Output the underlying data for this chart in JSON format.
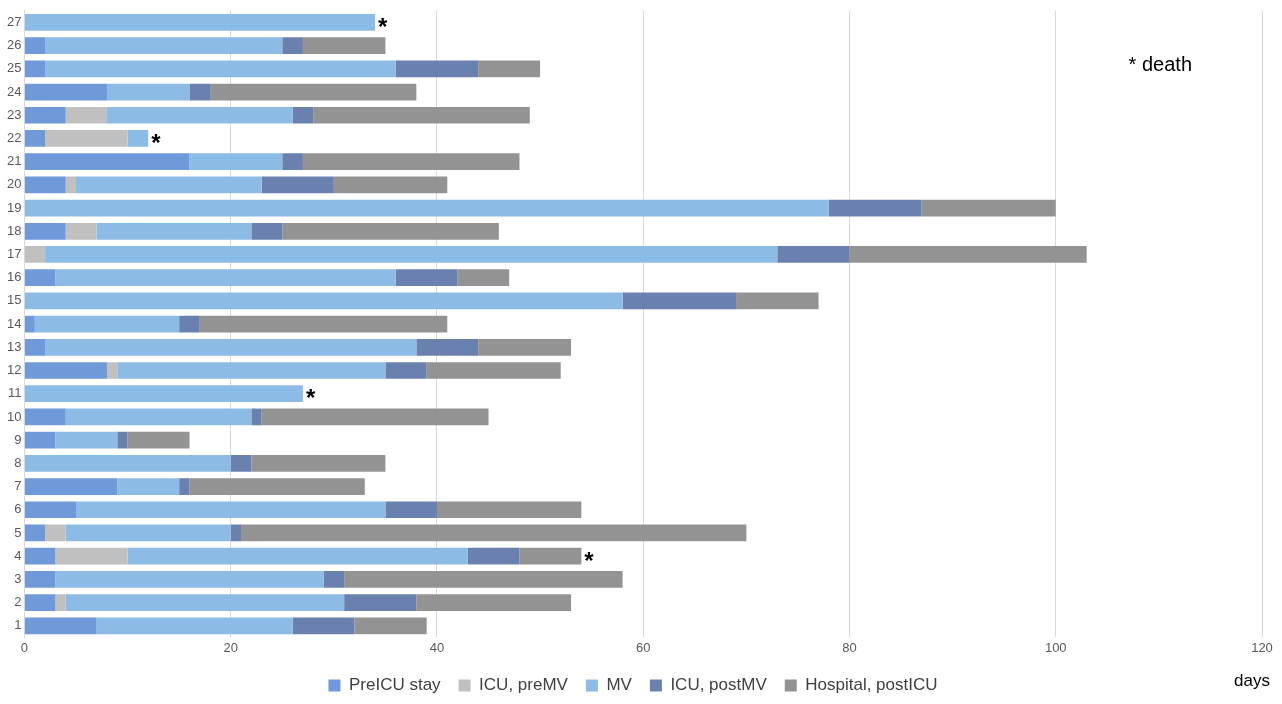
{
  "chart_data": {
    "type": "bar",
    "orientation": "horizontal",
    "stacked": true,
    "xlabel": "days",
    "categories": [
      "27",
      "26",
      "25",
      "24",
      "23",
      "22",
      "21",
      "20",
      "19",
      "18",
      "17",
      "16",
      "15",
      "14",
      "13",
      "12",
      "11",
      "10",
      "9",
      "8",
      "7",
      "6",
      "5",
      "4",
      "3",
      "2",
      "1"
    ],
    "series": [
      {
        "name": "PreICU stay",
        "color": "#7099da",
        "values": [
          0,
          2,
          2,
          8,
          4,
          2,
          16,
          4,
          0,
          4,
          0,
          3,
          0,
          1,
          2,
          8,
          0,
          4,
          3,
          0,
          9,
          5,
          2,
          3,
          3,
          3,
          7
        ]
      },
      {
        "name": "ICU, preMV",
        "color": "#c0c0c0",
        "values": [
          0,
          0,
          0,
          0,
          4,
          8,
          0,
          1,
          0,
          3,
          2,
          0,
          0,
          0,
          0,
          1,
          0,
          0,
          0,
          0,
          0,
          0,
          2,
          7,
          0,
          1,
          0
        ]
      },
      {
        "name": "MV",
        "color": "#8cbbe6",
        "values": [
          34,
          23,
          34,
          8,
          18,
          2,
          9,
          18,
          78,
          15,
          71,
          33,
          58,
          14,
          36,
          26,
          27,
          18,
          6,
          20,
          6,
          30,
          16,
          33,
          26,
          27,
          19
        ]
      },
      {
        "name": "ICU, postMV",
        "color": "#6a81b0",
        "values": [
          0,
          2,
          8,
          2,
          2,
          0,
          2,
          7,
          9,
          3,
          7,
          6,
          11,
          2,
          6,
          4,
          0,
          1,
          1,
          2,
          1,
          5,
          1,
          5,
          2,
          7,
          6
        ]
      },
      {
        "name": "Hospital, postICU",
        "color": "#939393",
        "values": [
          0,
          8,
          6,
          20,
          21,
          0,
          21,
          11,
          13,
          21,
          23,
          5,
          8,
          24,
          9,
          13,
          0,
          22,
          6,
          13,
          17,
          14,
          49,
          6,
          27,
          15,
          7
        ]
      }
    ],
    "xlim": [
      0,
      120
    ],
    "xticks": [
      0,
      20,
      40,
      60,
      80,
      100,
      120
    ],
    "grid": "x",
    "legend": "bottom",
    "annotations": [
      {
        "text": "*",
        "x": 34,
        "y": "27"
      },
      {
        "text": "*",
        "x": 12,
        "y": "22"
      },
      {
        "text": "*",
        "x": 27,
        "y": "11"
      },
      {
        "text": "*",
        "x": 54,
        "y": "4"
      },
      "* death"
    ]
  }
}
